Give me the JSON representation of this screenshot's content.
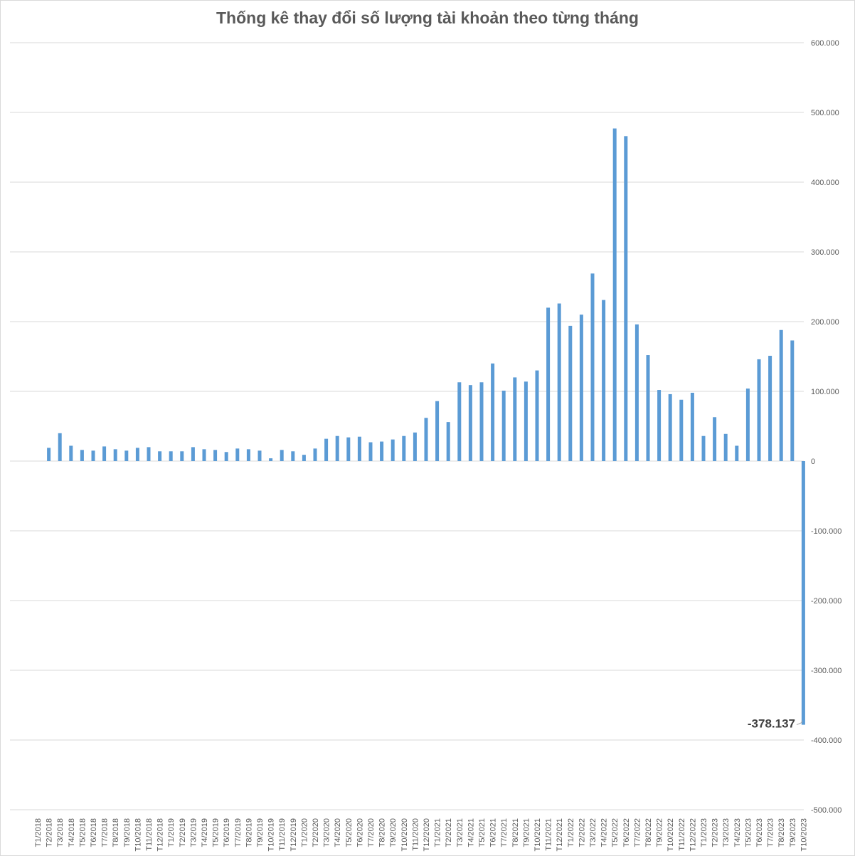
{
  "chart_data": {
    "type": "bar",
    "title": "Thống kê thay đổi số lượng tài khoản theo từng tháng",
    "xlabel": "",
    "ylabel": "",
    "ylim": [
      -500000,
      600000
    ],
    "yticks": [
      600000,
      500000,
      400000,
      300000,
      200000,
      100000,
      0,
      -100000,
      -200000,
      -300000,
      -400000,
      -500000
    ],
    "ytick_labels": [
      "600.000",
      "500.000",
      "400.000",
      "300.000",
      "200.000",
      "100.000",
      "0",
      "-100.000",
      "-200.000",
      "-300.000",
      "-400.000",
      "-500.000"
    ],
    "grid": true,
    "bar_color": "#5b9bd5",
    "categories": [
      "T1/2018",
      "T2/2018",
      "T3/2018",
      "T4/2018",
      "T5/2018",
      "T6/2018",
      "T7/2018",
      "T8/2018",
      "T9/2018",
      "T10/2018",
      "T11/2018",
      "T12/2018",
      "T1/2019",
      "T2/2019",
      "T3/2019",
      "T4/2019",
      "T5/2019",
      "T6/2019",
      "T7/2019",
      "T8/2019",
      "T9/2019",
      "T10/2019",
      "T11/2019",
      "T12/2019",
      "T1/2020",
      "T2/2020",
      "T3/2020",
      "T4/2020",
      "T5/2020",
      "T6/2020",
      "T7/2020",
      "T8/2020",
      "T9/2020",
      "T10/2020",
      "T11/2020",
      "T12/2020",
      "T1/2021",
      "T2/2021",
      "T3/2021",
      "T4/2021",
      "T5/2021",
      "T6/2021",
      "T7/2021",
      "T8/2021",
      "T9/2021",
      "T10/2021",
      "T11/2021",
      "T12/2021",
      "T1/2022",
      "T2/2022",
      "T3/2022",
      "T4/2022",
      "T5/2022",
      "T6/2022",
      "T7/2022",
      "T8/2022",
      "T9/2022",
      "T10/2022",
      "T11/2022",
      "T12/2022",
      "T1/2023",
      "T2/2023",
      "T3/2023",
      "T4/2023",
      "T5/2023",
      "T6/2023",
      "T7/2023",
      "T8/2023",
      "T9/2023",
      "T10/2023"
    ],
    "values": [
      0,
      19000,
      40000,
      22000,
      16000,
      15000,
      21000,
      17000,
      15000,
      19000,
      20000,
      14000,
      14000,
      14000,
      20000,
      17000,
      16000,
      13000,
      18000,
      17000,
      15000,
      4000,
      16000,
      14000,
      9000,
      18000,
      32000,
      36000,
      34000,
      35000,
      27000,
      28000,
      31000,
      36000,
      41000,
      62000,
      86000,
      56000,
      113000,
      109000,
      113000,
      140000,
      101000,
      120000,
      114000,
      130000,
      220000,
      226000,
      194000,
      210000,
      269000,
      231000,
      477000,
      466000,
      196000,
      152000,
      102000,
      96000,
      88000,
      98000,
      36000,
      63000,
      39000,
      22000,
      104000,
      146000,
      151000,
      188000,
      173000,
      -378137
    ],
    "annotations": [
      {
        "category": "T10/2023",
        "text": "-378.137"
      }
    ]
  }
}
